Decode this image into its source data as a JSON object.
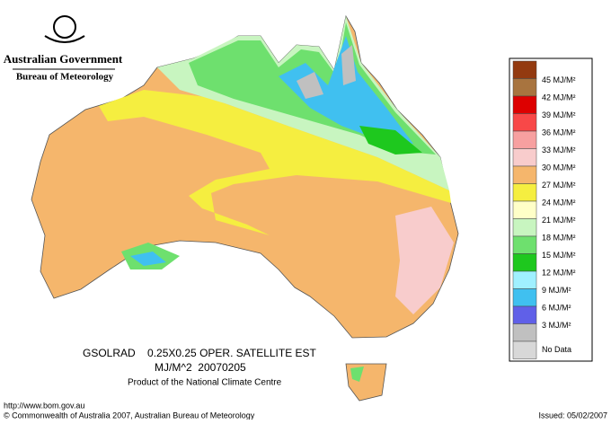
{
  "header": {
    "government": "Australian Government",
    "bureau": "Bureau of Meteorology"
  },
  "caption": {
    "line1": "GSOLRAD    0.25X0.25 OPER. SATELLITE EST",
    "line2": "MJ/M^2  20070205",
    "line3": "Product of the National Climate Centre"
  },
  "legend": {
    "swatches": [
      "#933a10",
      "#a8743f",
      "#dd0000",
      "#f84848",
      "#f7a0a0",
      "#f8cccc",
      "#f5b66c",
      "#f5ee40",
      "#ffffc8",
      "#c8f5c0",
      "#6ee06e",
      "#1ec81e",
      "#a0f0ff",
      "#40c0f0",
      "#6060e8",
      "#c0c0c0",
      "#d8d8d8"
    ],
    "labels": [
      "45 MJ/M²",
      "42 MJ/M²",
      "39 MJ/M²",
      "36 MJ/M²",
      "33 MJ/M²",
      "30 MJ/M²",
      "27 MJ/M²",
      "24 MJ/M²",
      "21 MJ/M²",
      "18 MJ/M²",
      "15 MJ/M²",
      "12 MJ/M²",
      "9 MJ/M²",
      "6 MJ/M²",
      "3 MJ/M²",
      "No Data"
    ]
  },
  "footer": {
    "url": "http://www.bom.gov.au",
    "copyright": "© Commonwealth of Australia 2007, Australian Bureau of Meteorology",
    "issued": "Issued: 05/02/2007"
  }
}
